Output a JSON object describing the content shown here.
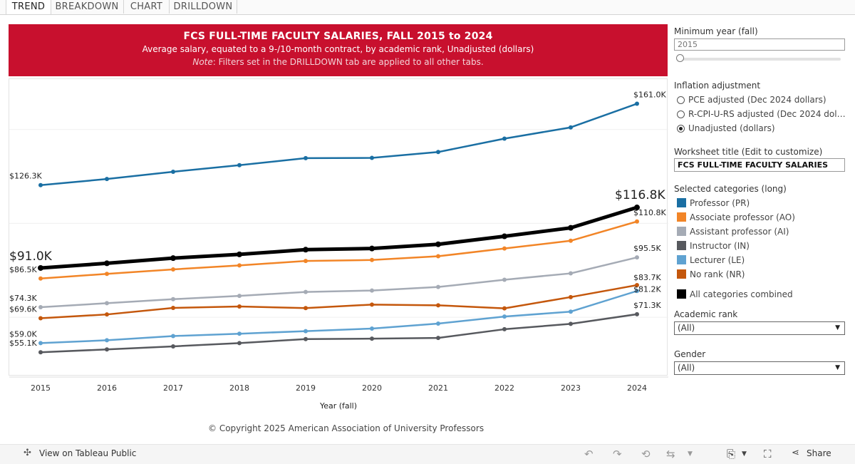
{
  "tabs": [
    "TREND",
    "BREAKDOWN",
    "CHART",
    "DRILLDOWN"
  ],
  "banner": {
    "title": "FCS FULL-TIME FACULTY SALARIES, FALL 2015 to 2024",
    "subtitle": "Average salary, equated to a 9-/10-month contract, by academic rank, Unadjusted (dollars)",
    "note_label": "Note",
    "note_text": ": Filters set in the DRILLDOWN tab are applied to all other tabs."
  },
  "chart_data": {
    "type": "line",
    "xlabel": "Year (fall)",
    "ylabel": "",
    "x": [
      2015,
      2016,
      2017,
      2018,
      2019,
      2020,
      2021,
      2022,
      2023,
      2024
    ],
    "ylim": [
      50000,
      166000
    ],
    "grid": true,
    "legend": "right",
    "series": [
      {
        "name": "Professor (PR)",
        "color": "#1a6fa3",
        "values": [
          126300,
          128900,
          132000,
          134800,
          137800,
          137900,
          140400,
          146100,
          150900,
          161000
        ],
        "start_label": "$126.3K",
        "end_label": "$161.0K"
      },
      {
        "name": "All categories combined",
        "color": "#000000",
        "values": [
          91000,
          93000,
          95200,
          96800,
          98800,
          99300,
          101100,
          104500,
          108100,
          116800
        ],
        "start_label": "$91.0K",
        "end_label": "$116.8K"
      },
      {
        "name": "Associate professor (AO)",
        "color": "#f28527",
        "values": [
          86500,
          88500,
          90400,
          92100,
          94000,
          94400,
          96000,
          99300,
          102600,
          110800
        ],
        "start_label": "$86.5K",
        "end_label": "$110.8K"
      },
      {
        "name": "Assistant professor (AI)",
        "color": "#a5abb5",
        "values": [
          74300,
          76000,
          77700,
          79100,
          80800,
          81400,
          82900,
          86000,
          88700,
          95500
        ],
        "start_label": "$74.3K",
        "end_label": "$95.5K"
      },
      {
        "name": "No rank (NR)",
        "color": "#c4570c",
        "values": [
          69600,
          71200,
          74000,
          74600,
          73900,
          75400,
          75100,
          73800,
          78600,
          83700
        ],
        "start_label": "$69.6K",
        "end_label": "$83.7K"
      },
      {
        "name": "Lecturer (LE)",
        "color": "#5fa2d1",
        "values": [
          59000,
          60200,
          62000,
          63000,
          64100,
          65200,
          67300,
          70300,
          72400,
          81200
        ],
        "start_label": "$59.0K",
        "end_label": "$81.2K"
      },
      {
        "name": "Instructor (IN)",
        "color": "#57595e",
        "values": [
          55100,
          56300,
          57600,
          59000,
          60700,
          60900,
          61200,
          64900,
          67200,
          71300
        ],
        "start_label": "$55.1K",
        "end_label": "$71.3K"
      }
    ]
  },
  "copyright": "© Copyright 2025 American Association of University Professors",
  "panel": {
    "min_year_label": "Minimum year (fall)",
    "min_year_value": "2015",
    "inflation_label": "Inflation adjustment",
    "inflation_options": [
      "PCE adjusted (Dec 2024 dollars)",
      "R-CPI-U-RS adjusted (Dec 2024 dollar...",
      "Unadjusted (dollars)"
    ],
    "inflation_selected": 2,
    "worksheet_title_label": "Worksheet title (Edit to customize)",
    "worksheet_title_value": "FCS FULL-TIME FACULTY SALARIES",
    "categories_label": "Selected categories (long)",
    "categories": [
      {
        "label": "Professor (PR)",
        "color": "#1a6fa3"
      },
      {
        "label": "Associate professor (AO)",
        "color": "#f28527"
      },
      {
        "label": "Assistant professor (AI)",
        "color": "#a5abb5"
      },
      {
        "label": "Instructor (IN)",
        "color": "#57595e"
      },
      {
        "label": "Lecturer (LE)",
        "color": "#5fa2d1"
      },
      {
        "label": "No rank (NR)",
        "color": "#c4570c"
      }
    ],
    "combined_label": "All categories combined",
    "combined_color": "#000000",
    "rank_label": "Academic rank",
    "rank_value": "(All)",
    "gender_label": "Gender",
    "gender_value": "(All)"
  },
  "footer": {
    "view_label": "View on Tableau Public",
    "share_label": "Share"
  }
}
